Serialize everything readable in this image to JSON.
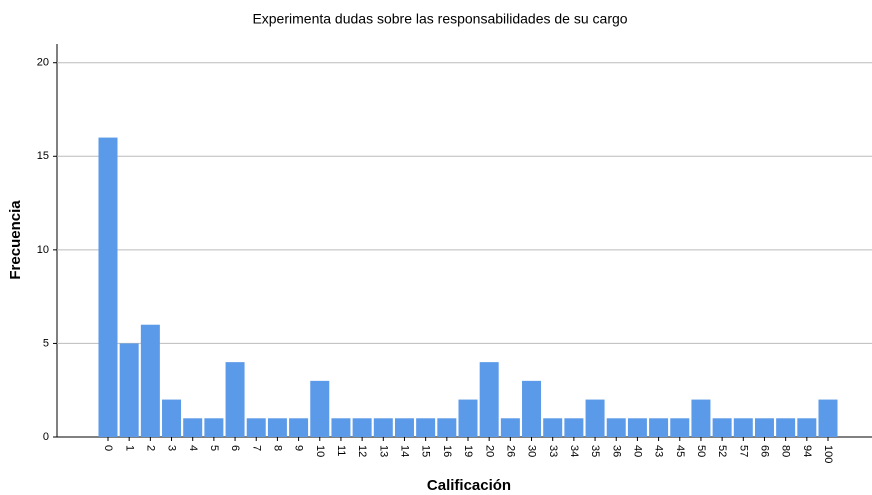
{
  "chart_data": {
    "type": "bar",
    "title": "Experimenta dudas sobre las responsabilidades de su cargo",
    "x_label": "Calificación",
    "y_label": "Frecuencia",
    "categories": [
      "0",
      "1",
      "2",
      "3",
      "4",
      "5",
      "6",
      "7",
      "8",
      "9",
      "10",
      "11",
      "12",
      "13",
      "14",
      "15",
      "16",
      "19",
      "20",
      "26",
      "30",
      "33",
      "34",
      "35",
      "36",
      "40",
      "43",
      "45",
      "50",
      "52",
      "57",
      "66",
      "80",
      "94",
      "100"
    ],
    "values": [
      16,
      5,
      6,
      2,
      1,
      1,
      4,
      1,
      1,
      1,
      3,
      1,
      1,
      1,
      1,
      1,
      1,
      2,
      4,
      1,
      3,
      1,
      1,
      2,
      1,
      1,
      1,
      1,
      2,
      1,
      1,
      1,
      1,
      1,
      2
    ],
    "color": "#5b9ae8",
    "ylim": [
      0,
      21
    ],
    "yticks": [
      0,
      5,
      10,
      15,
      20
    ],
    "grid": true
  }
}
